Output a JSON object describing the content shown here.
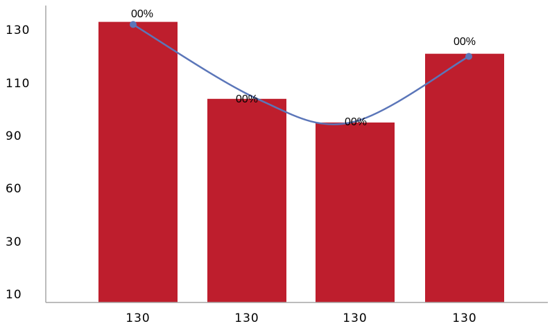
{
  "chart_data": {
    "type": "bar",
    "categories": [
      "130",
      "130",
      "130",
      "130"
    ],
    "series": [
      {
        "type": "bar",
        "values": [
          133,
          104,
          95,
          121
        ]
      },
      {
        "type": "line",
        "values": [
          132,
          104,
          95,
          120
        ],
        "data_labels": [
          "00%",
          "00%",
          "00%",
          "00%"
        ]
      }
    ],
    "y_ticks": [
      {
        "value": 10,
        "label": "10"
      },
      {
        "value": 30,
        "label": "30"
      },
      {
        "value": 60,
        "label": "60"
      },
      {
        "value": 90,
        "label": "90"
      },
      {
        "value": 110,
        "label": "110"
      },
      {
        "value": 130,
        "label": "130"
      }
    ],
    "ylim": [
      10,
      140
    ],
    "title": "",
    "xlabel": "",
    "ylabel": "",
    "grid": false,
    "colors": {
      "bar": "#be1e2d",
      "line": "#5b76b9",
      "axis": "#a6a6a6"
    }
  }
}
